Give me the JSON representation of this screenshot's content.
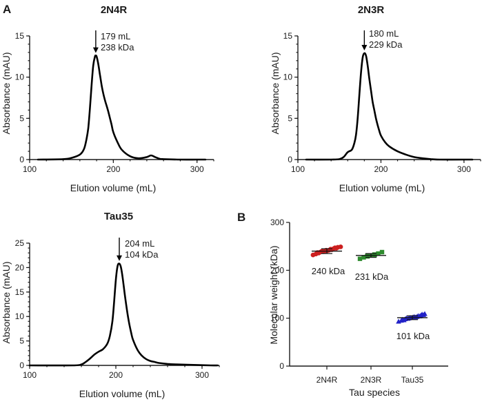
{
  "panel_labels": [
    "A",
    "B"
  ],
  "chart_data": [
    {
      "type": "line",
      "title": "2N4R",
      "xlabel": "Elution volume (mL)",
      "ylabel": "Absorbance (mAU)",
      "xlim": [
        100,
        320
      ],
      "ylim": [
        0,
        15
      ],
      "xticks": [
        100,
        200,
        300
      ],
      "yticks": [
        0,
        5,
        10,
        15
      ],
      "series": [
        {
          "name": "2N4R",
          "x": [
            110,
            140,
            150,
            160,
            165,
            168,
            170,
            172,
            174,
            176,
            178,
            179,
            180,
            182,
            184,
            186,
            188,
            190,
            192,
            194,
            196,
            198,
            200,
            205,
            210,
            220,
            230,
            240,
            245,
            250,
            255,
            260,
            280,
            300,
            310
          ],
          "y": [
            0,
            0.05,
            0.2,
            0.6,
            1.3,
            2.5,
            3.8,
            6.2,
            9.0,
            11.4,
            12.5,
            12.6,
            12.5,
            11.6,
            10.3,
            9.0,
            8.0,
            7.2,
            6.5,
            5.8,
            5.0,
            4.2,
            3.3,
            2.1,
            1.2,
            0.4,
            0.15,
            0.3,
            0.5,
            0.3,
            0.1,
            0.05,
            0,
            0,
            0
          ]
        }
      ],
      "annotations": [
        {
          "x": 179,
          "label_lines": [
            "179 mL",
            "238 kDa"
          ]
        }
      ]
    },
    {
      "type": "line",
      "title": "2N3R",
      "xlabel": "Elution volume (mL)",
      "ylabel": "Absorbance (mAU)",
      "xlim": [
        100,
        320
      ],
      "ylim": [
        0,
        15
      ],
      "xticks": [
        100,
        200,
        300
      ],
      "yticks": [
        0,
        5,
        10,
        15
      ],
      "series": [
        {
          "name": "2N3R",
          "x": [
            110,
            140,
            150,
            155,
            160,
            165,
            168,
            170,
            172,
            174,
            176,
            178,
            180,
            182,
            184,
            186,
            188,
            190,
            192,
            194,
            196,
            198,
            200,
            205,
            210,
            220,
            230,
            240,
            250,
            260,
            270,
            300,
            310
          ],
          "y": [
            0,
            0,
            0.05,
            0.3,
            0.9,
            1.2,
            2.0,
            3.0,
            5.0,
            7.8,
            10.5,
            12.4,
            12.9,
            12.6,
            11.4,
            9.8,
            8.4,
            7.0,
            6.0,
            5.0,
            4.2,
            3.5,
            2.9,
            2.1,
            1.6,
            1.0,
            0.6,
            0.3,
            0.15,
            0.05,
            0,
            0,
            0
          ]
        }
      ],
      "annotations": [
        {
          "x": 180,
          "label_lines": [
            "180 mL",
            "229 kDa"
          ]
        }
      ]
    },
    {
      "type": "line",
      "title": "Tau35",
      "xlabel": "Elution volume (mL)",
      "ylabel": "Absorbance (mAU)",
      "xlim": [
        100,
        320
      ],
      "ylim": [
        0,
        25
      ],
      "xticks": [
        100,
        200,
        300
      ],
      "yticks": [
        0,
        5,
        10,
        15,
        20,
        25
      ],
      "series": [
        {
          "name": "Tau35",
          "x": [
            100,
            150,
            160,
            165,
            170,
            175,
            180,
            185,
            190,
            193,
            196,
            198,
            200,
            202,
            204,
            206,
            208,
            210,
            212,
            215,
            218,
            220,
            225,
            230,
            235,
            240,
            245,
            250,
            260,
            270,
            290,
            310,
            318
          ],
          "y": [
            0,
            0,
            0.2,
            0.7,
            1.4,
            2.2,
            2.8,
            3.3,
            4.4,
            6.0,
            9.0,
            13.0,
            17.5,
            20.3,
            20.8,
            20.0,
            17.8,
            15.0,
            12.4,
            9.0,
            6.5,
            5.2,
            3.2,
            2.0,
            1.3,
            0.9,
            0.7,
            0.5,
            0.3,
            0.2,
            0.1,
            0,
            0
          ]
        }
      ],
      "annotations": [
        {
          "x": 204,
          "label_lines": [
            "204 mL",
            "104 kDa"
          ]
        }
      ]
    },
    {
      "type": "scatter",
      "title": "",
      "xlabel": "Tau species",
      "ylabel": "Molecular weight (kDa)",
      "ylim": [
        0,
        300
      ],
      "yticks": [
        0,
        100,
        200,
        300
      ],
      "categories": [
        "2N4R",
        "2N3R",
        "Tau35"
      ],
      "series": [
        {
          "name": "2N4R",
          "color": "#cc1f1f",
          "marker": "circle",
          "values": [
            232,
            234,
            236,
            237,
            238,
            239,
            240,
            240,
            241,
            242,
            242,
            243,
            244,
            245,
            246,
            247,
            248,
            249
          ],
          "mean": 240,
          "sd": 5,
          "label": "240 kDa"
        },
        {
          "name": "2N3R",
          "color": "#2e8b2e",
          "marker": "square",
          "values": [
            224,
            227,
            229,
            230,
            231,
            232,
            233,
            235,
            238
          ],
          "mean": 231,
          "sd": 4,
          "label": "231 kDa"
        },
        {
          "name": "Tau35",
          "color": "#2323c8",
          "marker": "triangle",
          "values": [
            93,
            95,
            96,
            97,
            98,
            99,
            100,
            100,
            101,
            101,
            102,
            102,
            103,
            103,
            104,
            105,
            106,
            107,
            108,
            109
          ],
          "mean": 101,
          "sd": 4,
          "label": "101 kDa"
        }
      ]
    }
  ]
}
